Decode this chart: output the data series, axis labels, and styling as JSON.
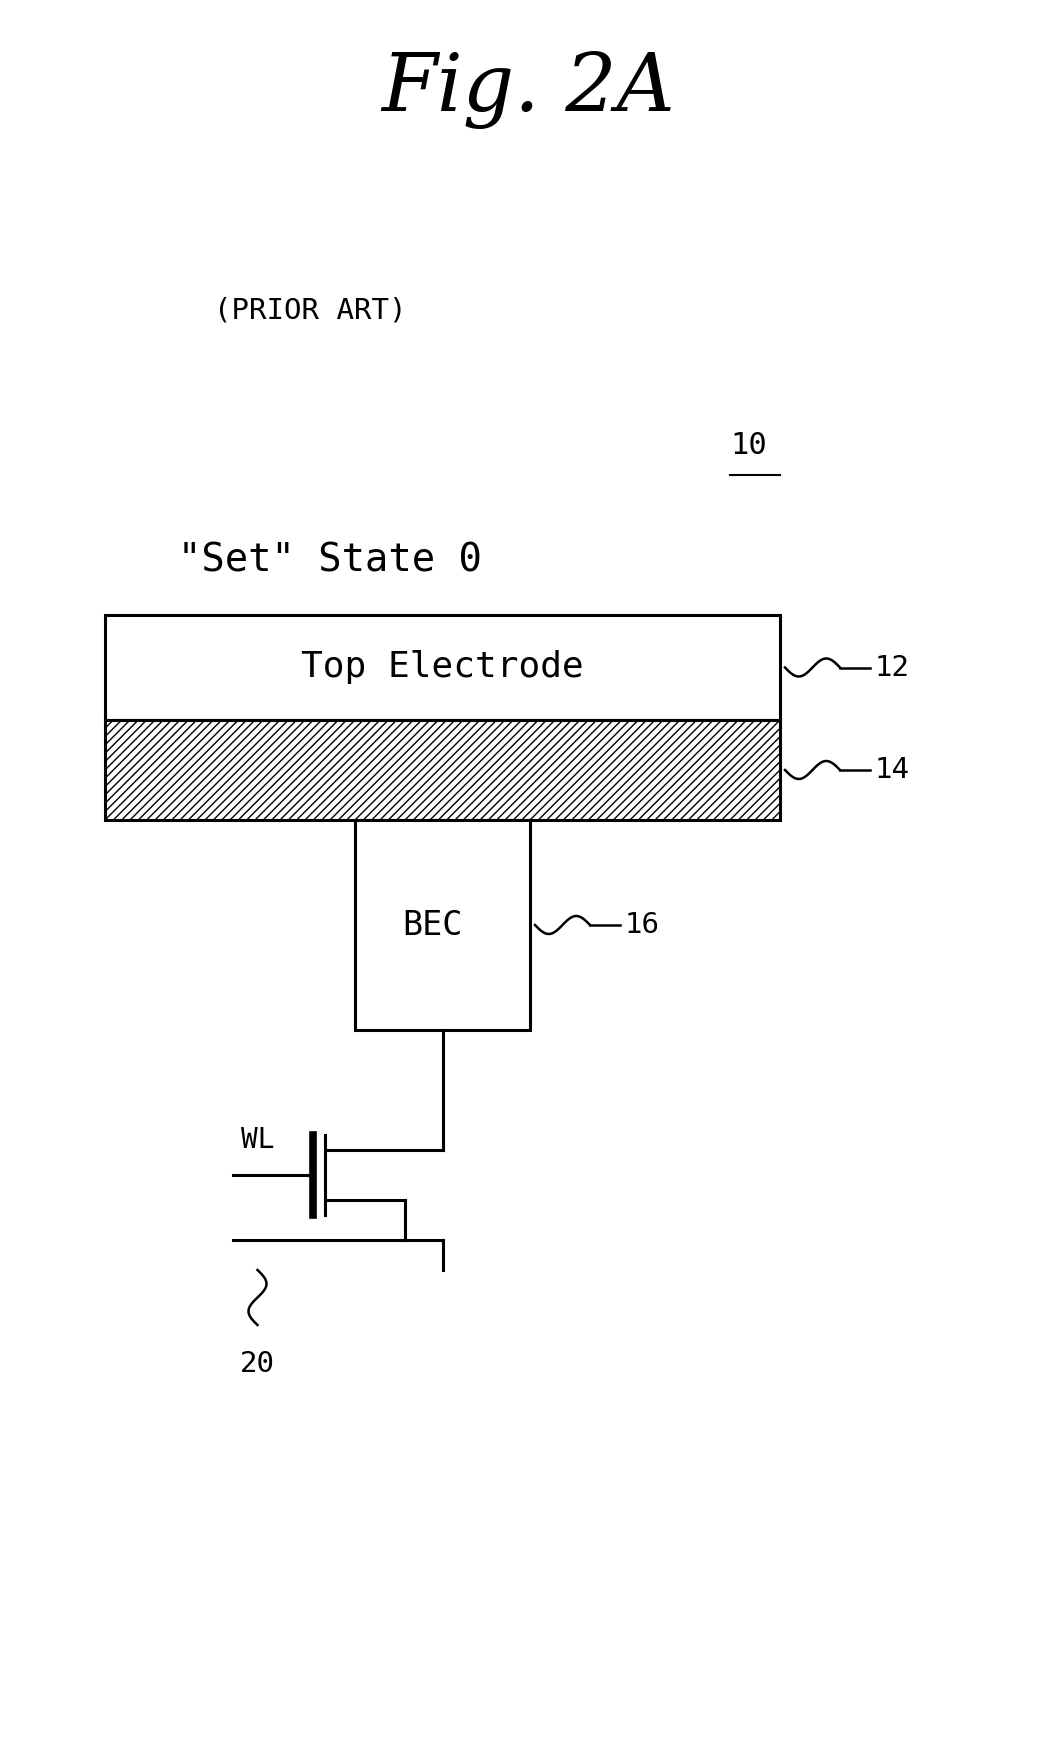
{
  "title": "Fig. 2A",
  "prior_art": "(PRIOR ART)",
  "state_label": "\"Set\" State 0",
  "label_10": "10",
  "label_12": "12",
  "label_14": "14",
  "label_16": "16",
  "label_20": "20",
  "label_wl": "WL",
  "label_bec": "BEC",
  "label_top_electrode": "Top Electrode",
  "bg_color": "#ffffff",
  "line_color": "#000000",
  "line_width": 2.2,
  "fig_width": 10.56,
  "fig_height": 17.43,
  "dpi": 100
}
